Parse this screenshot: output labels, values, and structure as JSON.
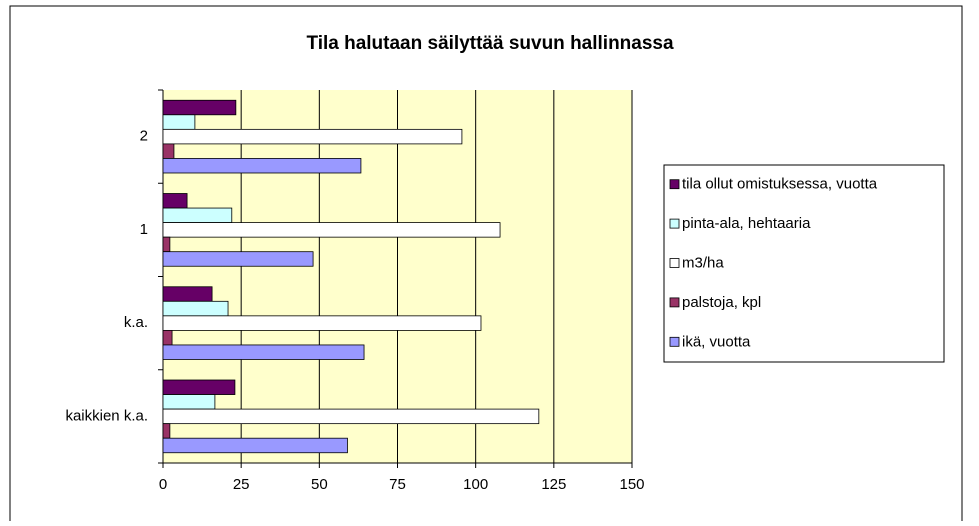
{
  "chart_data": {
    "type": "hbar",
    "title": "Tila halutaan säilyttää suvun hallinnassa",
    "categories": [
      "kaikkien k.a.",
      "k.a.",
      "1",
      "2"
    ],
    "series": [
      {
        "name": "tila ollut omistuksessa, vuotta",
        "color": "#660066",
        "values": [
          23,
          15.7,
          7.7,
          23.3
        ]
      },
      {
        "name": "pinta-ala, hehtaaria",
        "color": "#ccffff",
        "values": [
          16.6,
          20.8,
          22,
          10.2
        ]
      },
      {
        "name": "m3/ha",
        "color": "#ffffff",
        "values": [
          120.2,
          101.7,
          107.8,
          95.6
        ]
      },
      {
        "name": "palstoja, kpl",
        "color": "#993366",
        "values": [
          2.2,
          2.9,
          2.2,
          3.5
        ]
      },
      {
        "name": "ikä, vuotta",
        "color": "#9999ff",
        "values": [
          59,
          64.3,
          48,
          63.3
        ]
      }
    ],
    "xlim": [
      0,
      150
    ],
    "xticks": [
      0,
      25,
      50,
      75,
      100,
      125,
      150
    ],
    "grid": true,
    "plot_background": "#ffffcc",
    "legend": "right"
  }
}
